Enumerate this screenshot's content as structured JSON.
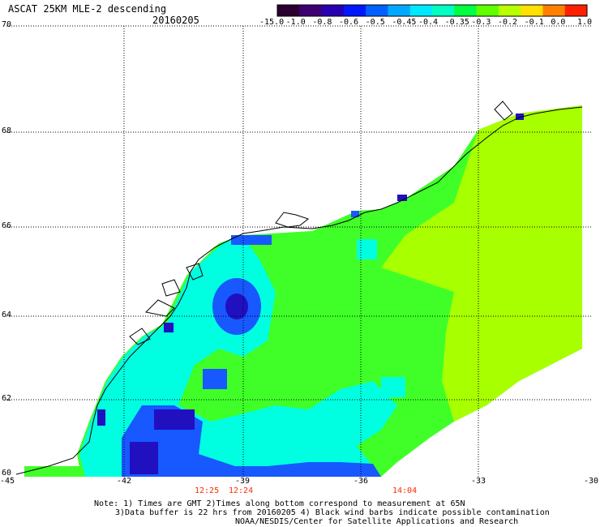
{
  "header": {
    "title": "ASCAT 25KM MLE-2 descending",
    "date": "20160205"
  },
  "colorbar": {
    "labels": [
      "-15.0",
      "-1.0",
      "-0.8",
      "-0.6",
      "-0.5",
      "-0.45",
      "-0.4",
      "-0.35",
      "-0.3",
      "-0.2",
      "-0.1",
      "0.0",
      "1.0"
    ],
    "colors": [
      "#2a0030",
      "#3c0070",
      "#2800b0",
      "#0018ff",
      "#0060ff",
      "#00a8ff",
      "#00e8ff",
      "#00ffc0",
      "#00ff40",
      "#60ff00",
      "#b8ff00",
      "#ffe000",
      "#ff8000",
      "#ff2000"
    ]
  },
  "map": {
    "lon_labels": [
      "-45",
      "-42",
      "-39",
      "-36",
      "-33",
      "-30"
    ],
    "lat_labels": [
      "70",
      "68",
      "66",
      "64",
      "62",
      "60"
    ],
    "time_labels": [
      "12:25",
      "12:24",
      "14:04"
    ],
    "colors": {
      "land_bg": "#ffffff",
      "swath_green": "#40ff28",
      "swath_lime": "#a8ff00",
      "swath_cyan": "#00ffe0",
      "swath_blue": "#1858ff",
      "swath_dark": "#2010c0",
      "coast": "#000000",
      "time_label": "#ff2b00"
    }
  },
  "footer": {
    "note1": "Note: 1) Times are GMT 2)Times along bottom correspond to measurement at 65N",
    "note2": "3)Data buffer is 22 hrs from 20160205 4) Black wind barbs indicate possible contamination",
    "credit": "NOAA/NESDIS/Center for Satellite Applications and Research"
  }
}
